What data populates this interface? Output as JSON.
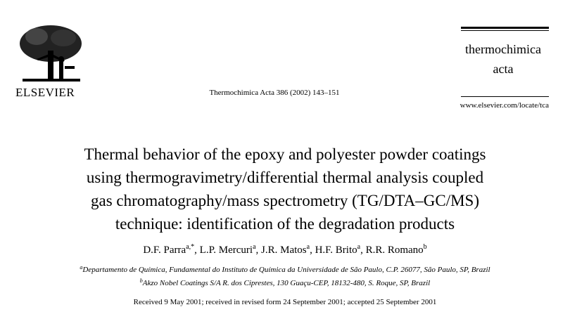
{
  "header": {
    "publisher": "ELSEVIER",
    "citation": "Thermochimica Acta 386 (2002) 143–151",
    "journal_lines": [
      "thermochimica",
      "acta"
    ],
    "url": "www.elsevier.com/locate/tca"
  },
  "title_lines": [
    "Thermal behavior of the epoxy and polyester powder coatings",
    "using thermogravimetry/differential thermal analysis coupled",
    "gas chromatography/mass spectrometry (TG/DTA–GC/MS)",
    "technique: identification of the degradation products"
  ],
  "author_separator": ", ",
  "authors": [
    {
      "name": "D.F. Parra",
      "sup": "a,*"
    },
    {
      "name": "L.P. Mercuri",
      "sup": "a"
    },
    {
      "name": "J.R. Matos",
      "sup": "a"
    },
    {
      "name": "H.F. Brito",
      "sup": "a"
    },
    {
      "name": "R.R. Romano",
      "sup": "b"
    }
  ],
  "affiliations": [
    {
      "mark": "a",
      "text": "Departamento de Química, Fundamental do Instituto de Química da Universidade de São Paulo, C.P. 26077, São Paulo, SP, Brazil"
    },
    {
      "mark": "b",
      "text": "Akzo Nobel Coatings S/A R. dos Ciprestes, 130 Guaçu-CEP, 18132-480, S. Roque, SP, Brazil"
    }
  ],
  "received": "Received 9 May 2001; received in revised form 24 September 2001; accepted 25 September 2001"
}
